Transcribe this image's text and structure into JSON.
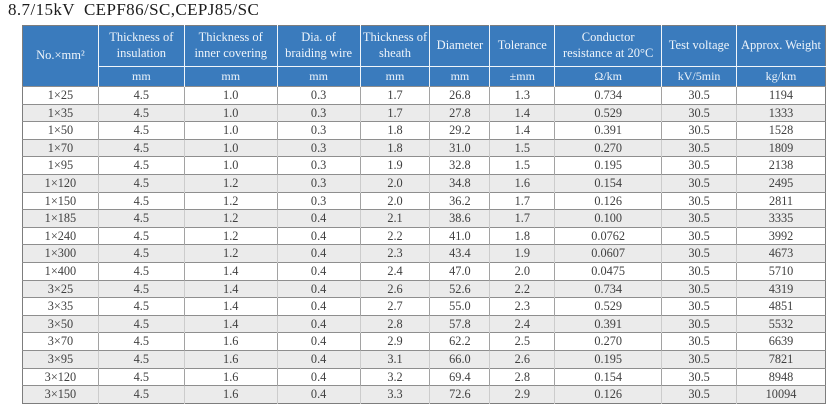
{
  "page": {
    "title": "8.7/15kV  CEPF86/SC,CEPJ85/SC"
  },
  "colors": {
    "header_bg": "#3a7bbd",
    "header_text": "#eef4fa",
    "stripe_bg": "#ebebeb",
    "row_bg": "#ffffff",
    "grid_line": "#8e8e8e",
    "data_text": "#404040",
    "title_text": "#1c1c1c"
  },
  "table": {
    "columns": [
      {
        "label": "No.×mm²",
        "unit": ""
      },
      {
        "label": "Thickness of insulation",
        "unit": "mm"
      },
      {
        "label": "Thickness of inner covering",
        "unit": "mm"
      },
      {
        "label": "Dia. of braiding wire",
        "unit": "mm"
      },
      {
        "label": "Thickness of sheath",
        "unit": "mm"
      },
      {
        "label": "Diameter",
        "unit": "mm"
      },
      {
        "label": "Tolerance",
        "unit": "±mm"
      },
      {
        "label": "Conductor resistance at 20°C",
        "unit": "Ω/km"
      },
      {
        "label": "Test voltage",
        "unit": "kV/5min"
      },
      {
        "label": "Approx. Weight",
        "unit": "kg/km"
      }
    ],
    "rows": [
      [
        "1×25",
        "4.5",
        "1.0",
        "0.3",
        "1.7",
        "26.8",
        "1.3",
        "0.734",
        "30.5",
        "1194"
      ],
      [
        "1×35",
        "4.5",
        "1.0",
        "0.3",
        "1.7",
        "27.8",
        "1.4",
        "0.529",
        "30.5",
        "1333"
      ],
      [
        "1×50",
        "4.5",
        "1.0",
        "0.3",
        "1.8",
        "29.2",
        "1.4",
        "0.391",
        "30.5",
        "1528"
      ],
      [
        "1×70",
        "4.5",
        "1.0",
        "0.3",
        "1.8",
        "31.0",
        "1.5",
        "0.270",
        "30.5",
        "1809"
      ],
      [
        "1×95",
        "4.5",
        "1.0",
        "0.3",
        "1.9",
        "32.8",
        "1.5",
        "0.195",
        "30.5",
        "2138"
      ],
      [
        "1×120",
        "4.5",
        "1.2",
        "0.3",
        "2.0",
        "34.8",
        "1.6",
        "0.154",
        "30.5",
        "2495"
      ],
      [
        "1×150",
        "4.5",
        "1.2",
        "0.3",
        "2.0",
        "36.2",
        "1.7",
        "0.126",
        "30.5",
        "2811"
      ],
      [
        "1×185",
        "4.5",
        "1.2",
        "0.4",
        "2.1",
        "38.6",
        "1.7",
        "0.100",
        "30.5",
        "3335"
      ],
      [
        "1×240",
        "4.5",
        "1.2",
        "0.4",
        "2.2",
        "41.0",
        "1.8",
        "0.0762",
        "30.5",
        "3992"
      ],
      [
        "1×300",
        "4.5",
        "1.2",
        "0.4",
        "2.3",
        "43.4",
        "1.9",
        "0.0607",
        "30.5",
        "4673"
      ],
      [
        "1×400",
        "4.5",
        "1.4",
        "0.4",
        "2.4",
        "47.0",
        "2.0",
        "0.0475",
        "30.5",
        "5710"
      ],
      [
        "3×25",
        "4.5",
        "1.4",
        "0.4",
        "2.6",
        "52.6",
        "2.2",
        "0.734",
        "30.5",
        "4319"
      ],
      [
        "3×35",
        "4.5",
        "1.4",
        "0.4",
        "2.7",
        "55.0",
        "2.3",
        "0.529",
        "30.5",
        "4851"
      ],
      [
        "3×50",
        "4.5",
        "1.4",
        "0.4",
        "2.8",
        "57.8",
        "2.4",
        "0.391",
        "30.5",
        "5532"
      ],
      [
        "3×70",
        "4.5",
        "1.6",
        "0.4",
        "2.9",
        "62.2",
        "2.5",
        "0.270",
        "30.5",
        "6639"
      ],
      [
        "3×95",
        "4.5",
        "1.6",
        "0.4",
        "3.1",
        "66.0",
        "2.6",
        "0.195",
        "30.5",
        "7821"
      ],
      [
        "3×120",
        "4.5",
        "1.6",
        "0.4",
        "3.2",
        "69.4",
        "2.8",
        "0.154",
        "30.5",
        "8948"
      ],
      [
        "3×150",
        "4.5",
        "1.6",
        "0.4",
        "3.3",
        "72.6",
        "2.9",
        "0.126",
        "30.5",
        "10094"
      ]
    ]
  }
}
